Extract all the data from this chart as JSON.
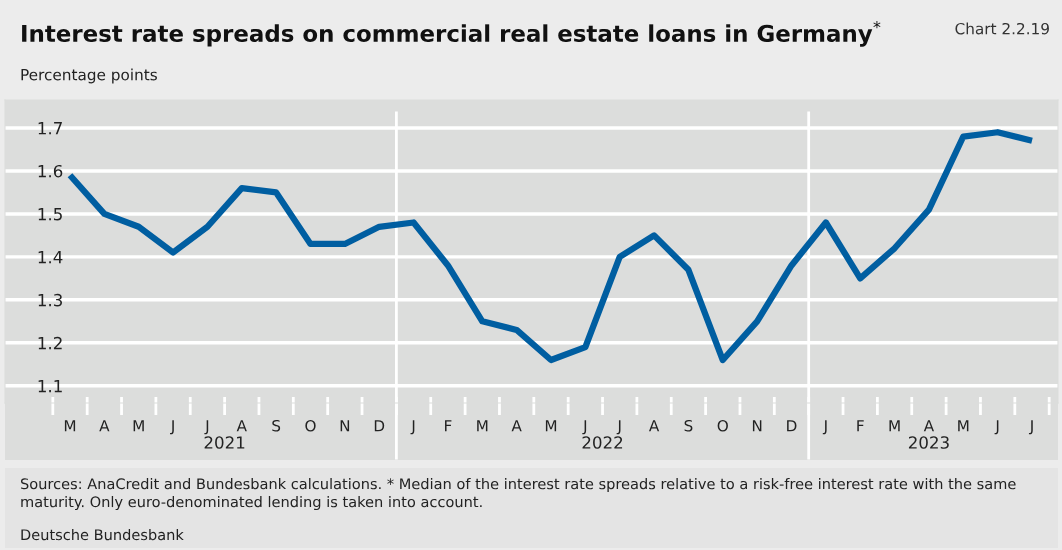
{
  "chart_data": {
    "type": "line",
    "title": "Interest rate spreads on commercial real estate loans in Germany$^{*}$",
    "subtitle": "Percentage points",
    "categories": [
      "M",
      "A",
      "M",
      "J",
      "J",
      "A",
      "S",
      "O",
      "N",
      "D",
      "J",
      "F",
      "M",
      "A",
      "M",
      "J",
      "J",
      "A",
      "S",
      "O",
      "N",
      "D",
      "J",
      "F",
      "M",
      "A",
      "M",
      "J",
      "J"
    ],
    "series": [
      {
        "color": "#005ea1",
        "values": [
          1.59,
          1.5,
          1.47,
          1.41,
          1.47,
          1.56,
          1.55,
          1.43,
          1.43,
          1.47,
          1.48,
          1.38,
          1.25,
          1.23,
          1.16,
          1.19,
          1.4,
          1.45,
          1.37,
          1.16,
          1.25,
          1.38,
          1.48,
          1.35,
          1.42,
          1.51,
          1.68,
          1.69,
          1.67
        ]
      }
    ],
    "ylim": [
      1.06,
      1.765
    ],
    "yticks": [
      1.1,
      1.2,
      1.3,
      1.4,
      1.5,
      1.6,
      1.7
    ],
    "grid": "y",
    "line_style": "solid",
    "annotations": [
      "2021",
      "2022",
      "2023",
      "Chart 2.2.19",
      "Sources: AnaCredit and Bundesbank calculations. * Median of the interest rate spreads relative to a risk-free interest rate with the same maturity. Only euro-denominated lending is taken into account.",
      "Deutsche Bundesbank"
    ]
  }
}
